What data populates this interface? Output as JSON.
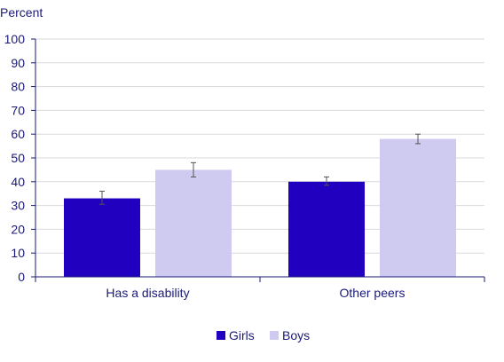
{
  "chart_data": {
    "type": "bar",
    "ylabel": "Percent",
    "xlabel": "",
    "title": "",
    "categories": [
      "Has a disability",
      "Other peers"
    ],
    "ylim": [
      0,
      100
    ],
    "yticks": [
      0,
      10,
      20,
      30,
      40,
      50,
      60,
      70,
      80,
      90,
      100
    ],
    "grid": true,
    "legend_position": "bottom-center",
    "series": [
      {
        "name": "Girls",
        "color": "#2100c0",
        "values": [
          33,
          40
        ],
        "error_low": [
          30.5,
          38.5
        ],
        "error_high": [
          36,
          42
        ]
      },
      {
        "name": "Boys",
        "color": "#cfcbf0",
        "values": [
          45,
          58
        ],
        "error_low": [
          42,
          56
        ],
        "error_high": [
          48,
          60
        ]
      }
    ]
  }
}
